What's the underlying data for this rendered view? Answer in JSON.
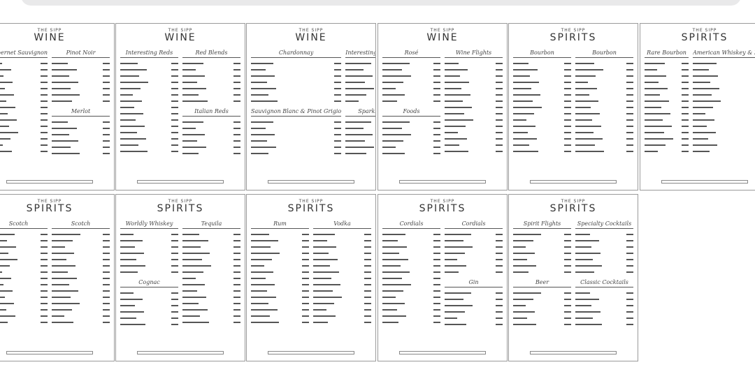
{
  "brand": "THE SIPP",
  "pages": [
    {
      "kind": "WINE",
      "sections": [
        [
          "Cabernet Sauvignon"
        ],
        [
          "Pinot Noir",
          "Merlot"
        ]
      ]
    },
    {
      "kind": "WINE",
      "sections": [
        [
          "Interesting Reds"
        ],
        [
          "Red Blends",
          "Italian Reds"
        ]
      ]
    },
    {
      "kind": "WINE",
      "sections": [
        [
          "Chardonnay",
          "Sauvignon Blanc & Pinot Grigio"
        ],
        [
          "Interesting Whites",
          "Sparkling"
        ]
      ]
    },
    {
      "kind": "WINE",
      "sections": [
        [
          "Rosé",
          "Foods"
        ],
        [
          "Wine Flights"
        ]
      ]
    },
    {
      "kind": "SPIRITS",
      "sections": [
        [
          "Bourbon"
        ],
        [
          "Bourbon"
        ]
      ]
    },
    {
      "kind": "SPIRITS",
      "sections": [
        [
          "Rare Bourbon"
        ],
        [
          "American Whiskey & Rye"
        ]
      ]
    },
    {
      "kind": "SPIRITS",
      "sections": [
        [
          "Scotch"
        ],
        [
          "Scotch"
        ]
      ]
    },
    {
      "kind": "SPIRITS",
      "sections": [
        [
          "Worldly Whiskey",
          "Cognac"
        ],
        [
          "Tequila"
        ]
      ]
    },
    {
      "kind": "SPIRITS",
      "sections": [
        [
          "Rum"
        ],
        [
          "Vodka"
        ]
      ]
    },
    {
      "kind": "SPIRITS",
      "sections": [
        [
          "Cordials"
        ],
        [
          "Cordials",
          "Gin"
        ]
      ]
    },
    {
      "kind": "SPIRITS",
      "sections": [
        [
          "Spirit Flights",
          "Beer"
        ],
        [
          "Specialty Cocktails",
          "Classic Cocktails"
        ]
      ]
    }
  ]
}
